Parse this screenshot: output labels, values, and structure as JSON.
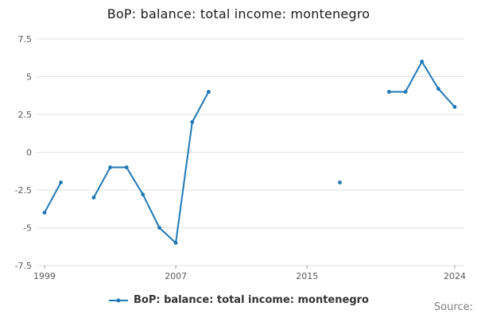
{
  "title": "BoP: balance: total income: montenegro",
  "legend": {
    "label": "BoP: balance: total income: montenegro"
  },
  "source": "Source:",
  "colors": {
    "line": "#1f77b4",
    "grid": "#e0e0e0",
    "tick_label": "#595959",
    "tick_mark": "#999999",
    "title": "#1a1a1a"
  },
  "chart_data": {
    "type": "line",
    "title": "BoP: balance: total income: montenegro",
    "x": [
      1999,
      2000,
      2001,
      2002,
      2003,
      2004,
      2005,
      2006,
      2007,
      2008,
      2009,
      2010,
      2011,
      2012,
      2013,
      2014,
      2015,
      2016,
      2017,
      2018,
      2019,
      2020,
      2021,
      2022,
      2023,
      2024
    ],
    "values": [
      -4,
      -2,
      null,
      -3,
      -1,
      -1,
      -2.8,
      -5,
      -6,
      2,
      4,
      null,
      null,
      null,
      null,
      null,
      null,
      null,
      -2,
      null,
      null,
      4,
      4,
      6,
      4.2,
      3
    ],
    "xticks": [
      1999,
      2007,
      2015,
      2024
    ],
    "yticks": [
      7.5,
      5,
      2.5,
      0,
      -2.5,
      -5,
      -7.5
    ],
    "xlim": [
      1999,
      2024
    ],
    "ylim": [
      -7.5,
      7.5
    ],
    "xlabel": "",
    "ylabel": "",
    "grid": "horizontal",
    "legend_position": "bottom",
    "series_name": "BoP: balance: total income: montenegro"
  }
}
